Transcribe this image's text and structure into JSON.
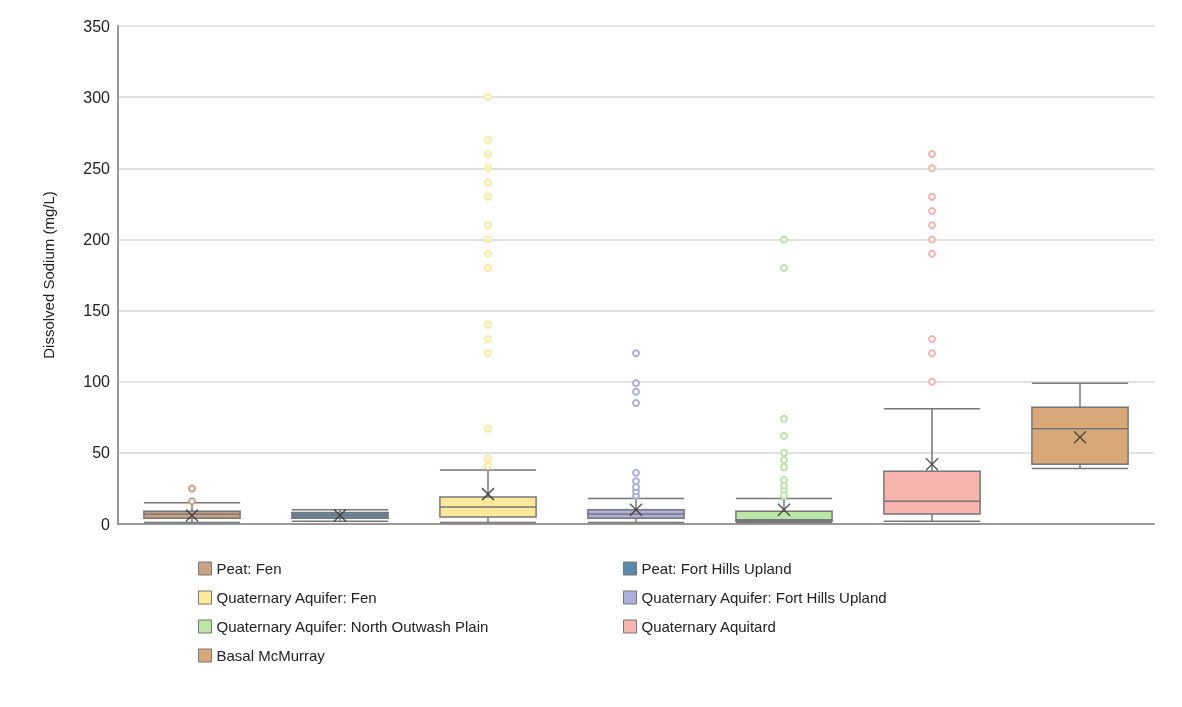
{
  "chart_data": {
    "type": "box",
    "ylabel": "Dissolved Sodium (mg/L)",
    "categories": [
      null,
      null,
      null,
      null,
      null,
      null,
      null
    ],
    "ylim": [
      0,
      350
    ],
    "yticks": [
      0,
      50,
      100,
      150,
      200,
      250,
      300,
      350
    ],
    "grid": "y",
    "legend": "bottom",
    "series": [
      {
        "name": "Peat: Fen",
        "color": "#c9a183",
        "boxes": [
          {
            "low": 1,
            "q1": 4,
            "median": 7,
            "q3": 9,
            "high": 15,
            "mean": 6,
            "outliers": [
              16,
              25
            ]
          },
          null,
          null,
          null,
          null,
          null,
          null
        ]
      },
      {
        "name": "Peat: Fort Hills Upland",
        "color": "#5a8aab",
        "boxes": [
          null,
          {
            "low": 2,
            "q1": 4,
            "median": 6,
            "q3": 8,
            "high": 10,
            "mean": 6
          },
          null,
          null,
          null,
          null,
          null
        ]
      },
      {
        "name": "Quaternary Aquifer: Fen",
        "color": "#fce99a",
        "boxes": [
          null,
          null,
          {
            "low": 1,
            "q1": 5,
            "median": 12,
            "q3": 19,
            "high": 38,
            "mean": 21,
            "outliers": [
              41,
              46,
              67,
              120,
              130,
              140,
              180,
              190,
              200,
              210,
              230,
              240,
              250,
              260,
              270,
              300
            ]
          },
          null,
          null,
          null,
          null
        ]
      },
      {
        "name": "Quaternary Aquifer: Fort Hills Upland",
        "color": "#aeaedc",
        "boxes": [
          null,
          null,
          null,
          {
            "low": 1,
            "q1": 4,
            "median": 7,
            "q3": 10,
            "high": 18,
            "mean": 10,
            "outliers": [
              20,
              23,
              26,
              30,
              36,
              85,
              93,
              99,
              120
            ]
          },
          null,
          null,
          null
        ]
      },
      {
        "name": "Quaternary Aquifer: North Outwash Plain",
        "color": "#b9e6a6",
        "boxes": [
          null,
          null,
          null,
          null,
          {
            "low": 1,
            "q1": 2,
            "median": 3,
            "q3": 9,
            "high": 18,
            "mean": 10,
            "outliers": [
              20,
              24,
              27,
              31,
              40,
              45,
              50,
              62,
              74,
              180,
              200
            ]
          },
          null,
          null
        ]
      },
      {
        "name": "Quaternary Aquitard",
        "color": "#f7b3ad",
        "boxes": [
          null,
          null,
          null,
          null,
          null,
          {
            "low": 2,
            "q1": 7,
            "median": 16,
            "q3": 37,
            "high": 81,
            "mean": 42,
            "outliers": [
              100,
              120,
              130,
              190,
              200,
              210,
              220,
              230,
              250,
              260
            ]
          },
          null
        ]
      },
      {
        "name": "Basal McMurray",
        "color": "#d9a878",
        "boxes": [
          null,
          null,
          null,
          null,
          null,
          null,
          {
            "low": 39,
            "q1": 42,
            "median": 67,
            "q3": 82,
            "high": 99,
            "mean": 61
          }
        ]
      }
    ]
  }
}
